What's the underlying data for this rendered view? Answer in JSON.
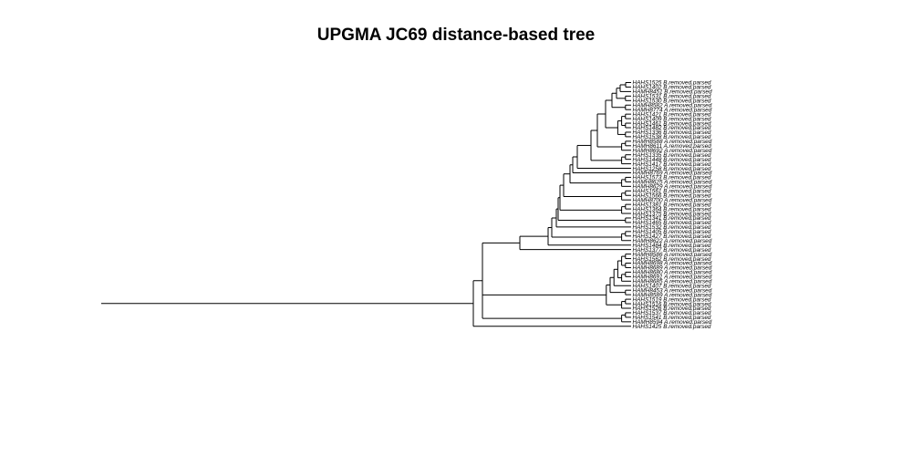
{
  "title": "UPGMA JC69 distance-based tree",
  "tree": {
    "tips": [
      "HAHS1525 B.removed.parsed",
      "HAHS1402 B.removed.parsed",
      "HAMH8451 B.removed.parsed",
      "HAHS1531 B.removed.parsed",
      "HAHS1530 B.removed.parsed",
      "HAMH8582 A.removed.parsed",
      "HAMH8774 A.removed.parsed",
      "HAHS1421 B.removed.parsed",
      "HAHS1409 B.removed.parsed",
      "HAHS1461 B.removed.parsed",
      "HAHS1482 B.removed.parsed",
      "HAHS1336 B.removed.parsed",
      "HAHS1538 B.removed.parsed",
      "HAMH8588 A.removed.parsed",
      "HAMH8611 A.removed.parsed",
      "HAMH8692 A.removed.parsed",
      "HAHS1335 B.removed.parsed",
      "HAHS1448 B.removed.parsed",
      "HAHS1417 B.removed.parsed",
      "HAHS1258 B.removed.parsed",
      "HAMH8769 A.removed.parsed",
      "HAHS1573 B.removed.parsed",
      "HAMH8625 A.removed.parsed",
      "HAMH8629 A.removed.parsed",
      "HAHS1561 B.removed.parsed",
      "HAHS1566 B.removed.parsed",
      "HAMH8700 A.removed.parsed",
      "HAHS1381 B.removed.parsed",
      "HAHS1364 B.removed.parsed",
      "HAHS1375 B.removed.parsed",
      "HAHS1341 B.removed.parsed",
      "HAHS1465 B.removed.parsed",
      "HAHS1532 B.removed.parsed",
      "HAHS1405 B.removed.parsed",
      "HAHS1427 B.removed.parsed",
      "HAMH8622 A.removed.parsed",
      "HAHS1484 B.removed.parsed",
      "HAHS1377 B.removed.parsed",
      "HAMH8586 A.removed.parsed",
      "HAHS1562 B.removed.parsed",
      "HAMH8698 A.removed.parsed",
      "HAMH8689 A.removed.parsed",
      "HAMH8680 A.removed.parsed",
      "HAMH8691 A.removed.parsed",
      "HAMH8685 A.removed.parsed",
      "HAHS1407 B.removed.parsed",
      "HAMH8453 A.removed.parsed",
      "HAMH8589 A.removed.parsed",
      "HAHS1519 B.removed.parsed",
      "HAHS1516 B.removed.parsed",
      "HAHS1526 B.removed.parsed",
      "HAHS1537 B.removed.parsed",
      "HAHS1541 B.removed.parsed",
      "HAMH8594 A.removed.parsed",
      "HAHS1425 B.removed.parsed",
      "HAPC1B.removed.parsed",
      "HAPC1A.removed.parsed",
      "HAPC2B.removed.parsed",
      "HAMH8547 B.removed.parsed",
      "HAMH8645 A.removed.parsed",
      "HAMH8768 B.removed.parsed",
      "HAHS1579 B.removed.parsed"
    ],
    "newick": "((((((((((((((((((((0,1),2),(3,4)),(5,6)),(((7,8),(9,10)),(11,12))),((13,14),15)),((16,17),18)),19),20),((21,22),23)),((24,25),26)),((27,28),29)),(30,31)),32),((33,34),35)),36),37),((((((38,39),(40,41)),((42,43),44)),45),(46,47)),((48,49),50)),((51,52),53)),54)),55),((56,57),((58,59),60))),61)"
  }
}
